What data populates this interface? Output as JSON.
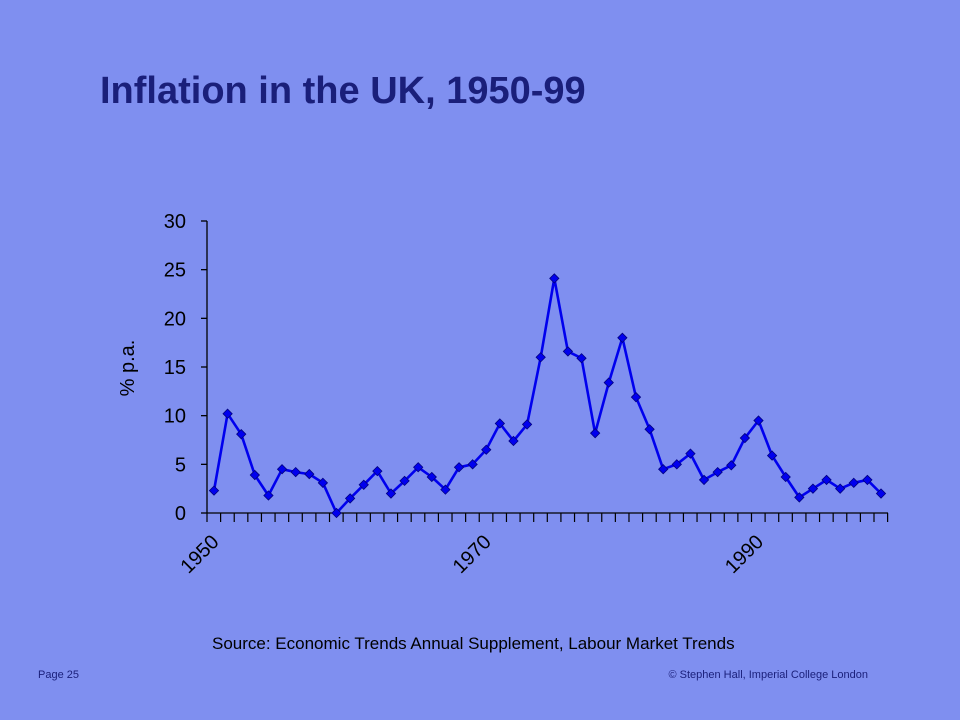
{
  "slide": {
    "title": "Inflation in the UK, 1950-99",
    "source": "Source: Economic Trends Annual Supplement, Labour Market Trends",
    "page_label": "Page 25",
    "copyright": "© Stephen Hall, Imperial College London"
  },
  "colors": {
    "background": "#7f8ff0",
    "title": "#1a1f7a",
    "series": "#0000ee",
    "axis": "#000000"
  },
  "chart_data": {
    "type": "line",
    "title": "",
    "ylabel": "% p.a.",
    "xlabel": "",
    "ylim": [
      0,
      30
    ],
    "yticks": [
      0,
      5,
      10,
      15,
      20,
      25,
      30
    ],
    "xtick_labels": [
      "1950",
      "1970",
      "1990"
    ],
    "grid": false,
    "series": [
      {
        "x": [
          1950,
          1951,
          1952,
          1953,
          1954,
          1955,
          1956,
          1957,
          1958,
          1959,
          1960,
          1961,
          1962,
          1963,
          1964,
          1965,
          1966,
          1967,
          1968,
          1969,
          1970,
          1971,
          1972,
          1973,
          1974,
          1975,
          1976,
          1977,
          1978,
          1979,
          1980,
          1981,
          1982,
          1983,
          1984,
          1985,
          1986,
          1987,
          1988,
          1989,
          1990,
          1991,
          1992,
          1993,
          1994,
          1995,
          1996,
          1997,
          1998,
          1999
        ],
        "values": [
          2.3,
          10.2,
          8.1,
          3.9,
          1.8,
          4.5,
          4.2,
          4.0,
          3.1,
          0.0,
          1.5,
          2.9,
          4.3,
          2.0,
          3.3,
          4.7,
          3.7,
          2.4,
          4.7,
          5.0,
          6.5,
          9.2,
          7.4,
          9.1,
          16.0,
          24.1,
          16.6,
          15.9,
          8.2,
          13.4,
          18.0,
          11.9,
          8.6,
          4.5,
          5.0,
          6.1,
          3.4,
          4.2,
          4.9,
          7.7,
          9.5,
          5.9,
          3.7,
          1.6,
          2.5,
          3.4,
          2.5,
          3.1,
          3.4,
          2.0
        ]
      }
    ]
  }
}
